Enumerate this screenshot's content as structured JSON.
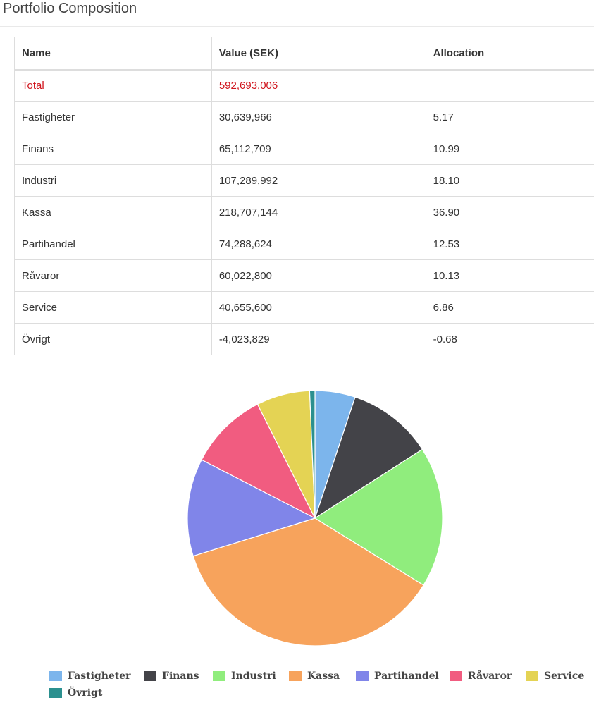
{
  "page": {
    "title": "Portfolio Composition"
  },
  "table": {
    "headers": [
      "Name",
      "Value (SEK)",
      "Allocation"
    ],
    "total": {
      "name": "Total",
      "value": "592,693,006",
      "allocation": ""
    },
    "rows": [
      {
        "name": "Fastigheter",
        "value": "30,639,966",
        "allocation": "5.17"
      },
      {
        "name": "Finans",
        "value": "65,112,709",
        "allocation": "10.99"
      },
      {
        "name": "Industri",
        "value": "107,289,992",
        "allocation": "18.10"
      },
      {
        "name": "Kassa",
        "value": "218,707,144",
        "allocation": "36.90"
      },
      {
        "name": "Partihandel",
        "value": "74,288,624",
        "allocation": "12.53"
      },
      {
        "name": "Råvaror",
        "value": "60,022,800",
        "allocation": "10.13"
      },
      {
        "name": "Service",
        "value": "40,655,600",
        "allocation": "6.86"
      },
      {
        "name": "Övrigt",
        "value": "-4,023,829",
        "allocation": "-0.68"
      }
    ]
  },
  "colors": {
    "total_text": "#d0131b"
  },
  "chart_data": {
    "type": "pie",
    "title": "",
    "legend_position": "bottom",
    "categories": [
      "Fastigheter",
      "Finans",
      "Industri",
      "Kassa",
      "Partihandel",
      "Råvaror",
      "Service",
      "Övrigt"
    ],
    "values": [
      30639966,
      65112709,
      107289992,
      218707144,
      74288624,
      60022800,
      40655600,
      4023829
    ],
    "colors": [
      "#7cb5ec",
      "#434348",
      "#90ed7d",
      "#f7a35c",
      "#8085e9",
      "#f15c80",
      "#e4d354",
      "#2b908f"
    ]
  }
}
